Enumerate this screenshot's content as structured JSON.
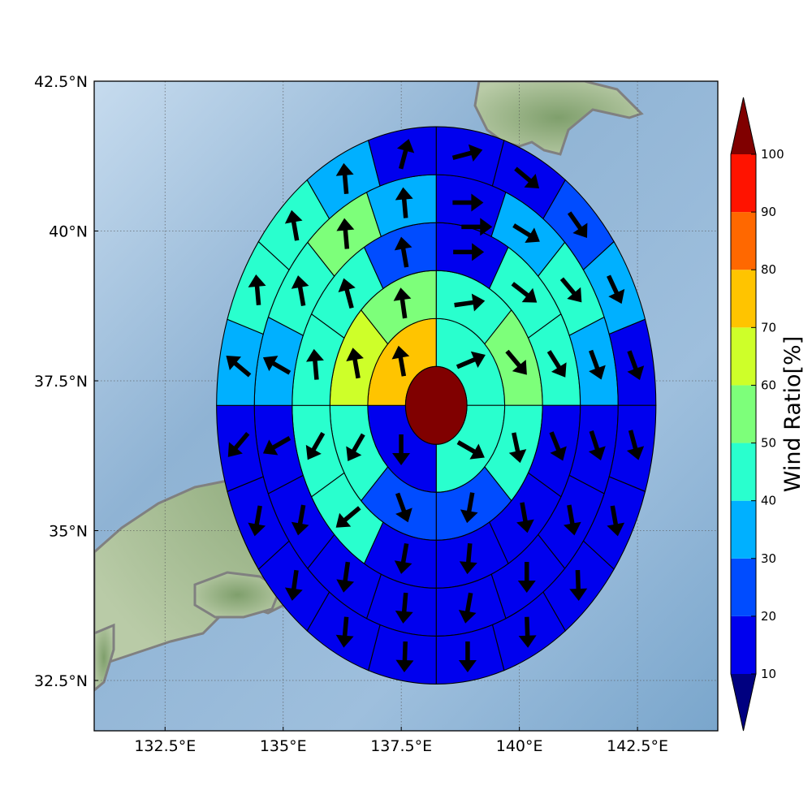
{
  "chart_data": {
    "type": "heatmap",
    "title": "",
    "map_extent": {
      "lon": [
        131.0,
        144.2
      ],
      "lat": [
        31.66,
        42.5
      ]
    },
    "center": {
      "lon": 138.24,
      "lat": 37.09
    },
    "ring_radii_deg": [
      0.65,
      1.45,
      2.25,
      3.05,
      3.85,
      4.65
    ],
    "x_ticks": [
      {
        "value": 132.5,
        "label": "132.5°E"
      },
      {
        "value": 135.0,
        "label": "135°E"
      },
      {
        "value": 137.5,
        "label": "137.5°E"
      },
      {
        "value": 140.0,
        "label": "140°E"
      },
      {
        "value": 142.5,
        "label": "142.5°E"
      }
    ],
    "y_ticks": [
      {
        "value": 32.5,
        "label": "32.5°N"
      },
      {
        "value": 35.0,
        "label": "35°N"
      },
      {
        "value": 37.5,
        "label": "37.5°N"
      },
      {
        "value": 40.0,
        "label": "40°N"
      },
      {
        "value": 42.5,
        "label": "42.5°N"
      }
    ],
    "grid": true,
    "center_cell": {
      "value": 100
    },
    "rings": [
      {
        "sectors": 4,
        "values": [
          42,
          44,
          15,
          72
        ],
        "directions": [
          67,
          120,
          180,
          350
        ]
      },
      {
        "sectors": 8,
        "values": [
          43,
          52,
          43,
          25,
          25,
          43,
          65,
          52
        ],
        "directions": [
          82,
          140,
          168,
          190,
          160,
          210,
          350,
          352
        ]
      },
      {
        "sectors": 12,
        "values": [
          18,
          42,
          42,
          15,
          15,
          15,
          15,
          42,
          42,
          45,
          43,
          25
        ],
        "directions": [
          90,
          128,
          148,
          158,
          170,
          185,
          190,
          230,
          210,
          355,
          345,
          350
        ]
      },
      {
        "sectors": 16,
        "values": [
          15,
          35,
          42,
          35,
          15,
          15,
          15,
          15,
          15,
          15,
          15,
          15,
          35,
          42,
          52,
          35
        ],
        "directions": [
          90,
          122,
          140,
          160,
          162,
          170,
          180,
          190,
          185,
          188,
          190,
          240,
          300,
          350,
          355,
          355
        ],
        "extra_vectors": [
          {
            "lon": 139.1,
            "lat": 40.07,
            "direction": 90
          }
        ]
      },
      {
        "sectors": 20,
        "values": [
          15,
          15,
          25,
          35,
          15,
          15,
          15,
          15,
          15,
          15,
          15,
          15,
          15,
          15,
          15,
          35,
          45,
          45,
          35,
          15
        ],
        "directions": [
          75,
          130,
          145,
          155,
          160,
          165,
          170,
          178,
          178,
          180,
          182,
          185,
          188,
          190,
          220,
          310,
          355,
          350,
          355,
          15
        ]
      },
      {
        "sectors": 24,
        "values": [
          15,
          15,
          15,
          18,
          15,
          15,
          15,
          15,
          15,
          5,
          15,
          15,
          15,
          15,
          15,
          5,
          15,
          15,
          15,
          15,
          45,
          45,
          15,
          15
        ],
        "directions": [
          70,
          115,
          140,
          150,
          155,
          160,
          162,
          165,
          168,
          125,
          150,
          165,
          158,
          170,
          205,
          180,
          215,
          240,
          275,
          310,
          355,
          355,
          25,
          30
        ]
      }
    ],
    "colorbar": {
      "title": "Wind Ratio[%]",
      "levels": [
        10,
        20,
        30,
        40,
        50,
        60,
        70,
        80,
        90,
        100
      ],
      "tick_labels": [
        "10",
        "20",
        "30",
        "40",
        "50",
        "60",
        "70",
        "80",
        "90",
        "100"
      ],
      "colors": [
        "#0000ee",
        "#004cff",
        "#00b0ff",
        "#29ffce",
        "#7dff7a",
        "#ceff29",
        "#ffc400",
        "#ff6800",
        "#ff1300"
      ],
      "under_color": "#000080",
      "over_color": "#800000",
      "extend": "both"
    }
  }
}
